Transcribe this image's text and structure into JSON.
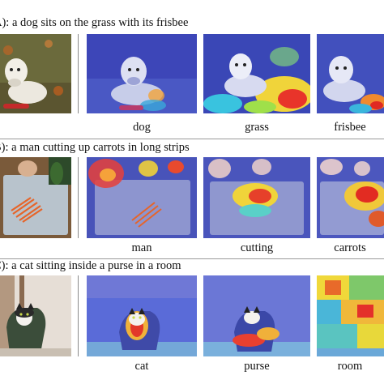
{
  "rows": [
    {
      "caption": "A): a dog sits on the grass with its frisbee",
      "words": [
        "dog",
        "grass",
        "frisbee"
      ]
    },
    {
      "caption": "B): a man cutting up carrots in long strips",
      "words": [
        "man",
        "cutting",
        "carrots"
      ]
    },
    {
      "caption": "C): a cat sitting inside a purse in a room",
      "words": [
        "cat",
        "purse",
        "room"
      ]
    }
  ]
}
